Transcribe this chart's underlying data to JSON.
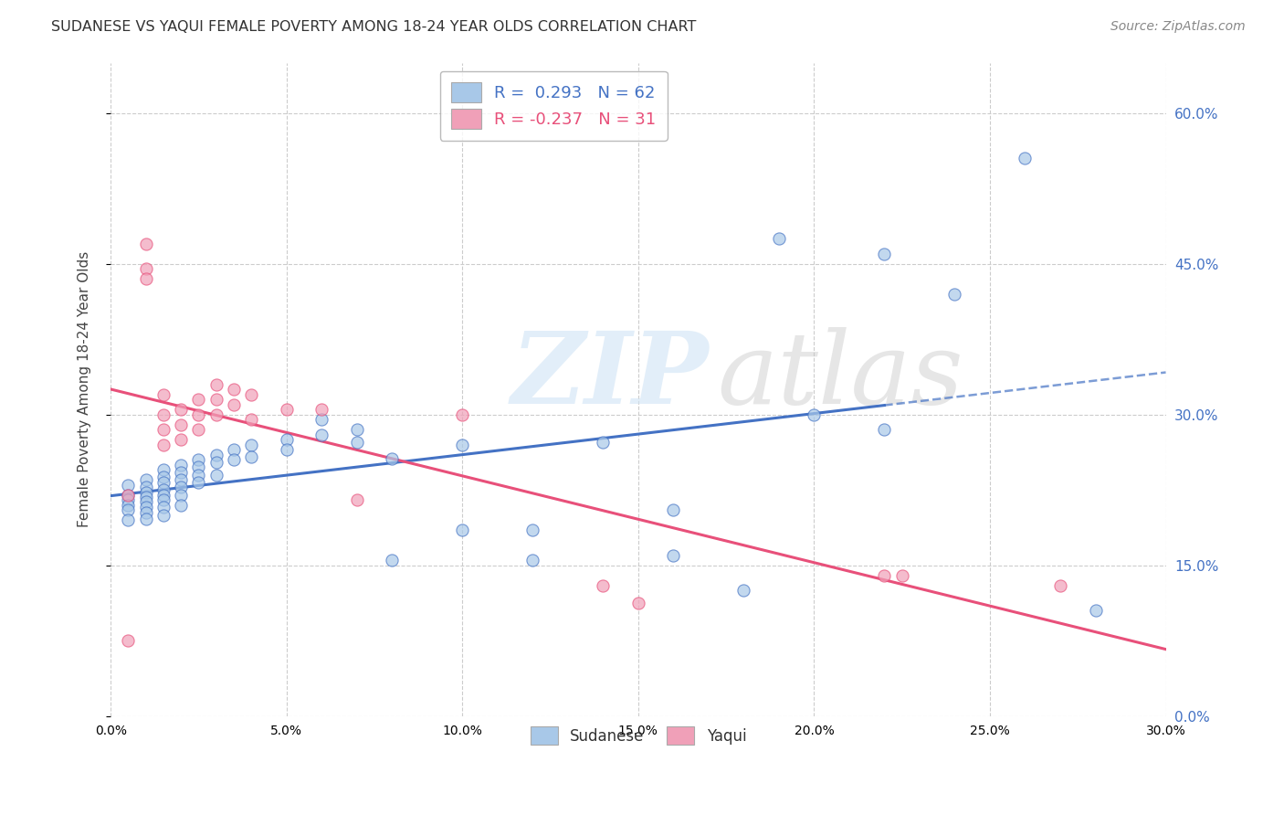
{
  "title": "SUDANESE VS YAQUI FEMALE POVERTY AMONG 18-24 YEAR OLDS CORRELATION CHART",
  "source": "Source: ZipAtlas.com",
  "ylabel_label": "Female Poverty Among 18-24 Year Olds",
  "xlim": [
    0.0,
    0.3
  ],
  "ylim": [
    0.0,
    0.65
  ],
  "color_sudanese": "#a8c8e8",
  "color_yaqui": "#f0a0b8",
  "color_line_sudanese": "#4472c4",
  "color_line_yaqui": "#e8507a",
  "background_color": "#ffffff",
  "grid_color": "#cccccc",
  "sudanese_x": [
    0.005,
    0.005,
    0.005,
    0.005,
    0.005,
    0.005,
    0.01,
    0.01,
    0.01,
    0.01,
    0.01,
    0.01,
    0.01,
    0.01,
    0.015,
    0.015,
    0.015,
    0.015,
    0.015,
    0.015,
    0.015,
    0.015,
    0.02,
    0.02,
    0.02,
    0.02,
    0.02,
    0.02,
    0.025,
    0.025,
    0.025,
    0.025,
    0.03,
    0.03,
    0.03,
    0.035,
    0.035,
    0.04,
    0.04,
    0.05,
    0.05,
    0.06,
    0.07,
    0.07,
    0.08,
    0.1,
    0.12,
    0.14,
    0.16,
    0.18,
    0.19,
    0.2,
    0.22,
    0.24,
    0.26,
    0.28,
    0.16,
    0.06,
    0.08,
    0.1,
    0.12,
    0.22
  ],
  "sudanese_y": [
    0.23,
    0.22,
    0.215,
    0.21,
    0.205,
    0.195,
    0.235,
    0.228,
    0.222,
    0.218,
    0.213,
    0.208,
    0.202,
    0.196,
    0.245,
    0.238,
    0.232,
    0.225,
    0.22,
    0.215,
    0.208,
    0.2,
    0.25,
    0.242,
    0.235,
    0.228,
    0.22,
    0.21,
    0.255,
    0.248,
    0.24,
    0.232,
    0.26,
    0.252,
    0.24,
    0.265,
    0.255,
    0.27,
    0.258,
    0.275,
    0.265,
    0.28,
    0.285,
    0.272,
    0.155,
    0.27,
    0.185,
    0.272,
    0.16,
    0.125,
    0.475,
    0.3,
    0.285,
    0.42,
    0.555,
    0.105,
    0.205,
    0.295,
    0.256,
    0.185,
    0.155,
    0.46
  ],
  "yaqui_x": [
    0.005,
    0.01,
    0.01,
    0.01,
    0.015,
    0.015,
    0.015,
    0.015,
    0.02,
    0.02,
    0.02,
    0.025,
    0.025,
    0.025,
    0.03,
    0.03,
    0.03,
    0.035,
    0.035,
    0.04,
    0.04,
    0.05,
    0.06,
    0.07,
    0.1,
    0.14,
    0.15,
    0.22,
    0.225,
    0.27,
    0.005
  ],
  "yaqui_y": [
    0.075,
    0.47,
    0.445,
    0.435,
    0.32,
    0.3,
    0.285,
    0.27,
    0.305,
    0.29,
    0.275,
    0.315,
    0.3,
    0.285,
    0.33,
    0.315,
    0.3,
    0.325,
    0.31,
    0.32,
    0.295,
    0.305,
    0.305,
    0.215,
    0.3,
    0.13,
    0.112,
    0.14,
    0.14,
    0.13,
    0.22
  ]
}
